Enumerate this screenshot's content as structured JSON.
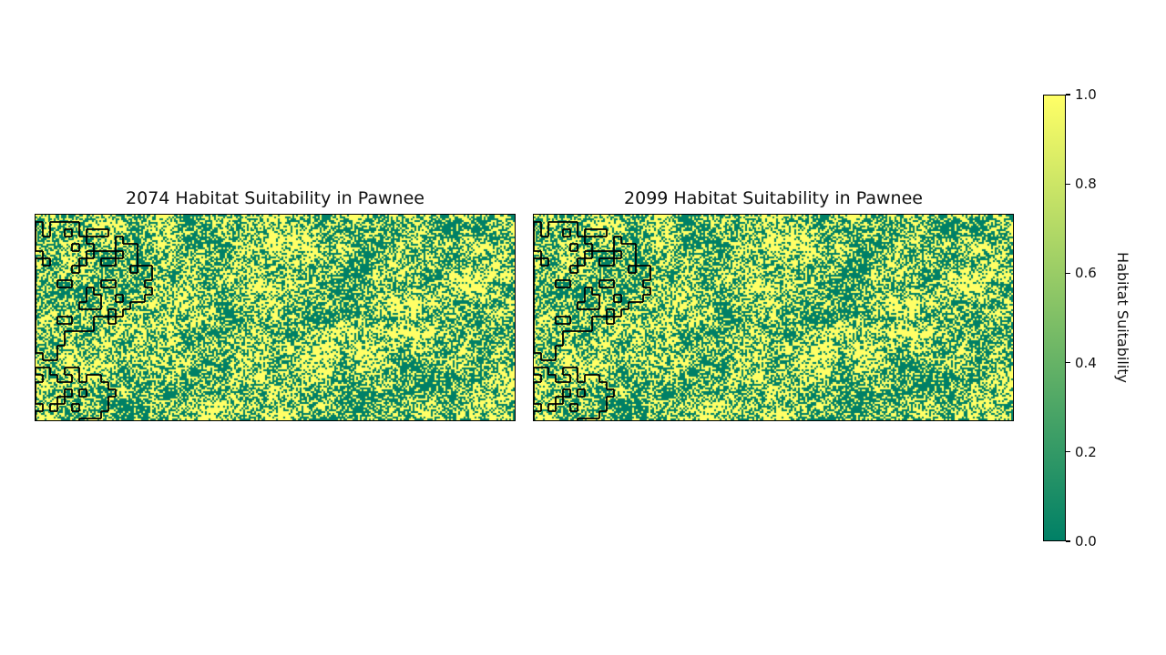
{
  "chart_data": [
    {
      "type": "heatmap",
      "title": "2074 Habitat Suitability in Pawnee",
      "colormap": "summer",
      "value_range": [
        0.0,
        1.0
      ],
      "xticks": [],
      "yticks": []
    },
    {
      "type": "heatmap",
      "title": "2099 Habitat Suitability in Pawnee",
      "colormap": "summer",
      "value_range": [
        0.0,
        1.0
      ],
      "xticks": [],
      "yticks": []
    }
  ],
  "colorbar": {
    "label": "Habitat Suitability",
    "ticks": [
      "0.0",
      "0.2",
      "0.4",
      "0.6",
      "0.8",
      "1.0"
    ],
    "tick_values": [
      0.0,
      0.2,
      0.4,
      0.6,
      0.8,
      1.0
    ],
    "color_low": "#008066",
    "color_high": "#ffff66"
  },
  "colors": {
    "low": "#008066",
    "high": "#ffff66",
    "outline": "#000000"
  }
}
